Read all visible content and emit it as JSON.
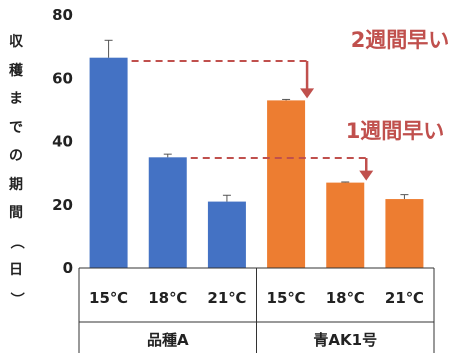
{
  "chart_data": {
    "type": "bar",
    "ylabel": "収穫までの期間（日）",
    "ylim": [
      0,
      80
    ],
    "yticks": [
      "0",
      "20",
      "40",
      "60",
      "80"
    ],
    "grid": false,
    "categories": [
      "15℃",
      "18℃",
      "21℃",
      "15℃",
      "18℃",
      "21℃"
    ],
    "groups": [
      {
        "name": "品種A",
        "color": "#4472c4",
        "indices": [
          0,
          1,
          2
        ]
      },
      {
        "name": "青AK1号",
        "color": "#ed7d31",
        "indices": [
          3,
          4,
          5
        ]
      }
    ],
    "values": [
      66.5,
      35,
      21,
      53,
      27,
      21.8
    ],
    "error_bars": [
      5.5,
      1.0,
      2.0,
      0.3,
      0.2,
      1.4
    ],
    "annotations": [
      {
        "text": "2週間早い",
        "from_bar": 0,
        "to_bar": 3,
        "color": "#c0504d"
      },
      {
        "text": "1週間早い",
        "from_bar": 1,
        "to_bar": 4,
        "color": "#c0504d"
      }
    ]
  }
}
